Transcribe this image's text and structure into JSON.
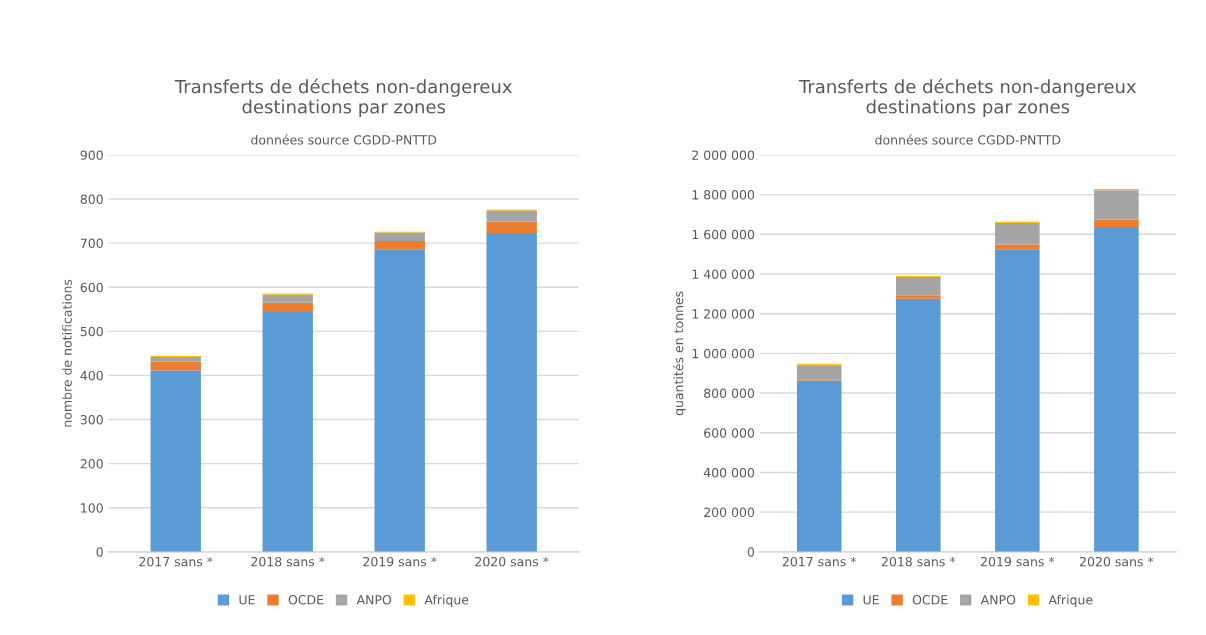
{
  "chart_data": [
    {
      "type": "bar",
      "stacked": true,
      "title": "Transferts de déchets non-dangereux\ndestinations par zones",
      "subtitle": "données source CGDD-PNTTD",
      "ylabel": "nombre de notifications",
      "categories": [
        "2017 sans *",
        "2018 sans *",
        "2019 sans *",
        "2020 sans *"
      ],
      "series": [
        {
          "name": "UE",
          "color": "#5b9bd5",
          "values": [
            411,
            544,
            686,
            723
          ]
        },
        {
          "name": "OCDE",
          "color": "#ed7d31",
          "values": [
            20,
            21,
            19,
            26
          ]
        },
        {
          "name": "ANPO",
          "color": "#a5a5a5",
          "values": [
            11,
            18,
            19,
            25
          ]
        },
        {
          "name": "Afrique",
          "color": "#ffc000",
          "values": [
            2,
            3,
            2,
            2
          ]
        }
      ],
      "ylim": [
        0,
        900
      ],
      "yticks": [
        0,
        100,
        200,
        300,
        400,
        500,
        600,
        700,
        800,
        900
      ],
      "grid": "y",
      "legend": "bottom"
    },
    {
      "type": "bar",
      "stacked": true,
      "title": "Transferts de déchets non-dangereux\ndestinations par zones",
      "subtitle": "données source CGDD-PNTTD",
      "ylabel": "quantités en tonnes",
      "categories": [
        "2017 sans *",
        "2018 sans *",
        "2019 sans *",
        "2020 sans *"
      ],
      "series": [
        {
          "name": "UE",
          "color": "#5b9bd5",
          "values": [
            863000,
            1275000,
            1525000,
            1637000
          ]
        },
        {
          "name": "OCDE",
          "color": "#ed7d31",
          "values": [
            7000,
            15000,
            24000,
            38000
          ]
        },
        {
          "name": "ANPO",
          "color": "#a5a5a5",
          "values": [
            70000,
            95000,
            108000,
            147000
          ]
        },
        {
          "name": "Afrique",
          "color": "#ffc000",
          "values": [
            8000,
            5000,
            6000,
            6000
          ]
        }
      ],
      "ylim": [
        0,
        2000000
      ],
      "yticks": [
        0,
        {
          "value": 200000,
          "label": "200 000"
        },
        {
          "value": 400000,
          "label": "400 000"
        },
        {
          "value": 600000,
          "label": "600 000"
        },
        {
          "value": 800000,
          "label": "800 000"
        },
        {
          "value": 1000000,
          "label": "1 000 000"
        },
        {
          "value": 1200000,
          "label": "1 200 000"
        },
        {
          "value": 1400000,
          "label": "1 400 000"
        },
        {
          "value": 1600000,
          "label": "1 600 000"
        },
        {
          "value": 1800000,
          "label": "1 800 000"
        },
        {
          "value": 2000000,
          "label": "2 000 000"
        }
      ],
      "grid": "y",
      "legend": "bottom"
    }
  ]
}
